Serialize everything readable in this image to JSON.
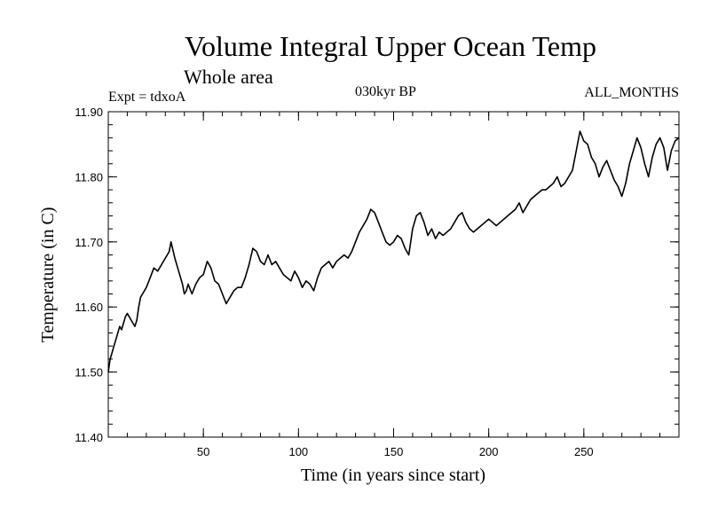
{
  "header": {
    "title": "Volume Integral Upper Ocean Temp",
    "subtitle": "Whole area",
    "expt": "Expt = tdxoA",
    "period": "030kyr BP",
    "months": "ALL_MONTHS"
  },
  "chart_data": {
    "type": "line",
    "xlabel": "Time (in years since start)",
    "ylabel": "Temperature (in C)",
    "xlim": [
      0,
      300
    ],
    "ylim": [
      11.4,
      11.9
    ],
    "xticks": [
      50,
      100,
      150,
      200,
      250
    ],
    "xtick_labels": [
      "50",
      "100",
      "150",
      "200",
      "250"
    ],
    "yticks": [
      11.4,
      11.5,
      11.6,
      11.7,
      11.8,
      11.9
    ],
    "ytick_labels": [
      "11.40",
      "11.50",
      "11.60",
      "11.70",
      "11.80",
      "11.90"
    ],
    "grid": false,
    "line_color": "#000000",
    "series": [
      {
        "x": [
          0,
          1,
          2,
          3,
          4,
          5,
          6,
          7,
          8,
          9,
          10,
          11,
          12,
          13,
          14,
          15,
          16,
          17,
          18,
          20,
          22,
          24,
          26,
          28,
          30,
          32,
          33,
          35,
          37,
          39,
          40,
          41,
          42,
          44,
          46,
          48,
          50,
          52,
          54,
          56,
          58,
          60,
          62,
          64,
          66,
          68,
          70,
          72,
          74,
          76,
          78,
          80,
          82,
          84,
          86,
          88,
          90,
          92,
          94,
          96,
          98,
          100,
          102,
          104,
          106,
          108,
          110,
          112,
          114,
          116,
          118,
          120,
          122,
          124,
          126,
          128,
          130,
          132,
          134,
          136,
          138,
          140,
          142,
          144,
          146,
          148,
          150,
          152,
          154,
          156,
          158,
          160,
          162,
          164,
          166,
          168,
          170,
          172,
          174,
          176,
          178,
          180,
          182,
          184,
          186,
          188,
          190,
          192,
          194,
          196,
          198,
          200,
          202,
          204,
          206,
          208,
          210,
          212,
          214,
          216,
          218,
          220,
          222,
          224,
          226,
          228,
          230,
          232,
          234,
          236,
          238,
          240,
          242,
          244,
          246,
          247,
          248,
          250,
          252,
          254,
          256,
          258,
          260,
          262,
          264,
          266,
          268,
          270,
          272,
          274,
          276,
          278,
          280,
          282,
          284,
          286,
          288,
          290,
          292,
          294,
          296,
          298,
          300
        ],
        "y": [
          11.5,
          11.52,
          11.53,
          11.54,
          11.55,
          11.56,
          11.57,
          11.565,
          11.575,
          11.585,
          11.59,
          11.585,
          11.58,
          11.575,
          11.57,
          11.58,
          11.6,
          11.615,
          11.62,
          11.63,
          11.645,
          11.66,
          11.655,
          11.665,
          11.675,
          11.685,
          11.7,
          11.675,
          11.655,
          11.635,
          11.62,
          11.625,
          11.635,
          11.62,
          11.635,
          11.645,
          11.65,
          11.67,
          11.66,
          11.64,
          11.635,
          11.62,
          11.605,
          11.615,
          11.625,
          11.63,
          11.63,
          11.645,
          11.665,
          11.69,
          11.685,
          11.67,
          11.665,
          11.68,
          11.665,
          11.67,
          11.66,
          11.65,
          11.645,
          11.64,
          11.655,
          11.645,
          11.63,
          11.64,
          11.635,
          11.625,
          11.645,
          11.66,
          11.665,
          11.67,
          11.66,
          11.67,
          11.675,
          11.68,
          11.675,
          11.685,
          11.7,
          11.715,
          11.725,
          11.735,
          11.75,
          11.745,
          11.73,
          11.715,
          11.7,
          11.695,
          11.7,
          11.71,
          11.705,
          11.69,
          11.68,
          11.72,
          11.74,
          11.745,
          11.73,
          11.71,
          11.72,
          11.705,
          11.715,
          11.71,
          11.715,
          11.72,
          11.73,
          11.74,
          11.745,
          11.73,
          11.72,
          11.715,
          11.72,
          11.725,
          11.73,
          11.735,
          11.73,
          11.725,
          11.73,
          11.735,
          11.74,
          11.745,
          11.75,
          11.76,
          11.745,
          11.755,
          11.765,
          11.77,
          11.775,
          11.78,
          11.78,
          11.785,
          11.79,
          11.8,
          11.785,
          11.79,
          11.8,
          11.81,
          11.84,
          11.855,
          11.87,
          11.855,
          11.85,
          11.83,
          11.82,
          11.8,
          11.815,
          11.825,
          11.81,
          11.795,
          11.785,
          11.77,
          11.79,
          11.82,
          11.84,
          11.86,
          11.845,
          11.82,
          11.8,
          11.83,
          11.85,
          11.86,
          11.845,
          11.81,
          11.84,
          11.855,
          11.86
        ]
      }
    ]
  }
}
